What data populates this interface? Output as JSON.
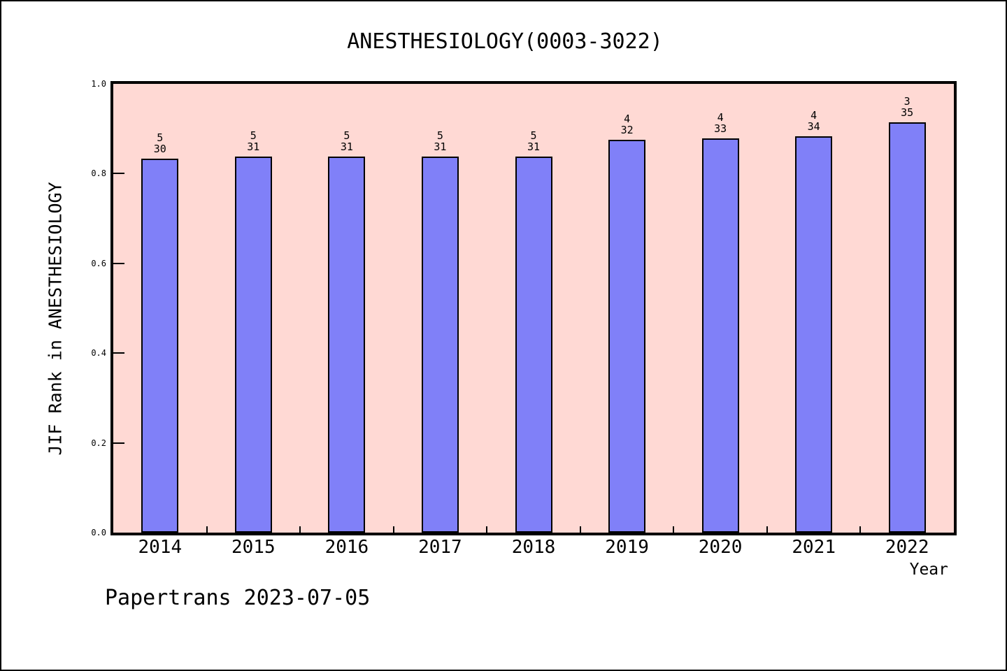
{
  "footer": "Papertrans 2023-07-05",
  "chart_data": {
    "type": "bar",
    "title": "ANESTHESIOLOGY(0003-3022)",
    "xlabel": "Year",
    "ylabel": "JIF Rank in ANESTHESIOLOGY",
    "categories": [
      "2014",
      "2015",
      "2016",
      "2017",
      "2018",
      "2019",
      "2020",
      "2021",
      "2022"
    ],
    "values": [
      0.8333,
      0.8387,
      0.8387,
      0.8387,
      0.8387,
      0.875,
      0.8788,
      0.8824,
      0.9143
    ],
    "bar_labels": [
      {
        "rank": "5",
        "total": "30"
      },
      {
        "rank": "5",
        "total": "31"
      },
      {
        "rank": "5",
        "total": "31"
      },
      {
        "rank": "5",
        "total": "31"
      },
      {
        "rank": "5",
        "total": "31"
      },
      {
        "rank": "4",
        "total": "32"
      },
      {
        "rank": "4",
        "total": "33"
      },
      {
        "rank": "4",
        "total": "34"
      },
      {
        "rank": "3",
        "total": "35"
      }
    ],
    "ylim": [
      0.0,
      1.0
    ],
    "yticks": [
      "0.0",
      "0.2",
      "0.4",
      "0.6",
      "0.8",
      "1.0"
    ],
    "grid": false,
    "legend": null,
    "colors": {
      "bar_fill": "#8080f8",
      "bar_border": "#000000",
      "plot_bg": "#ffd9d4",
      "frame": "#000000",
      "page_bg": "#ffffff",
      "text": "#000000"
    }
  }
}
